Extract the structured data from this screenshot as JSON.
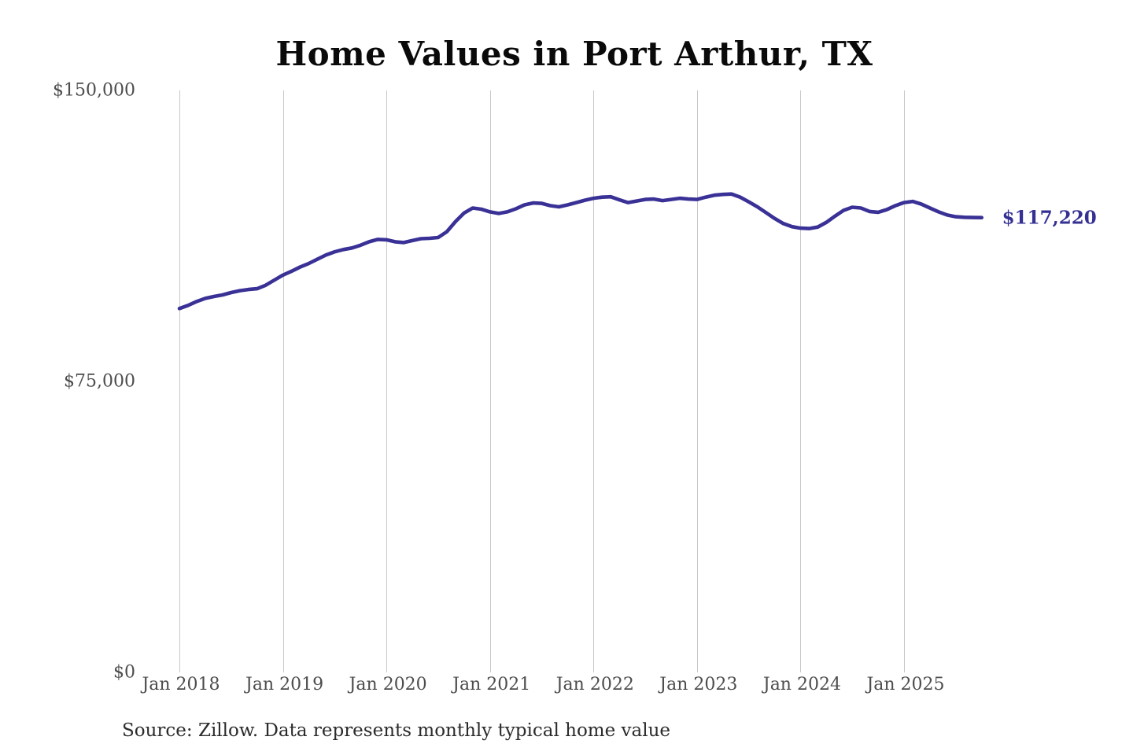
{
  "chart_data": {
    "type": "line",
    "title": "Home Values in Port Arthur, TX",
    "source_note": "Source: Zillow. Data represents monthly typical home value",
    "end_label": "$117,220",
    "unit": "USD",
    "frequency": "monthly",
    "start_month": "2018-01",
    "end_month": "2025-10",
    "ylim": [
      0,
      150000
    ],
    "grid": "vertical-only",
    "legend": "none",
    "line_color": "#3a3196",
    "grid_color": "#c8c8c8",
    "end_label_color": "#353093",
    "x_tick_labels": [
      "Jan 2018",
      "Jan 2019",
      "Jan 2020",
      "Jan 2021",
      "Jan 2022",
      "Jan 2023",
      "Jan 2024",
      "Jan 2025"
    ],
    "y_tick_labels": [
      "$150,000",
      "$75,000",
      "$0"
    ],
    "y_tick_values": [
      150000,
      75000,
      0
    ],
    "series": [
      {
        "name": "Typical home value",
        "values": [
          93800,
          94600,
          95600,
          96400,
          96900,
          97300,
          97900,
          98400,
          98700,
          98900,
          99800,
          101100,
          102400,
          103400,
          104500,
          105400,
          106500,
          107600,
          108400,
          109000,
          109400,
          110100,
          111000,
          111600,
          111500,
          111000,
          110800,
          111300,
          111800,
          111900,
          112100,
          113600,
          116200,
          118400,
          119700,
          119400,
          118700,
          118300,
          118700,
          119500,
          120500,
          121000,
          120900,
          120300,
          120000,
          120500,
          121100,
          121700,
          122200,
          122500,
          122600,
          121800,
          121100,
          121500,
          121900,
          122000,
          121600,
          121900,
          122200,
          122000,
          121900,
          122500,
          123000,
          123200,
          123300,
          122500,
          121300,
          120000,
          118500,
          117000,
          115700,
          114900,
          114500,
          114400,
          114800,
          116000,
          117600,
          119100,
          119900,
          119700,
          118800,
          118600,
          119300,
          120300,
          121100,
          121400,
          120700,
          119700,
          118700,
          117900,
          117450,
          117300,
          117250,
          117220
        ]
      }
    ]
  }
}
